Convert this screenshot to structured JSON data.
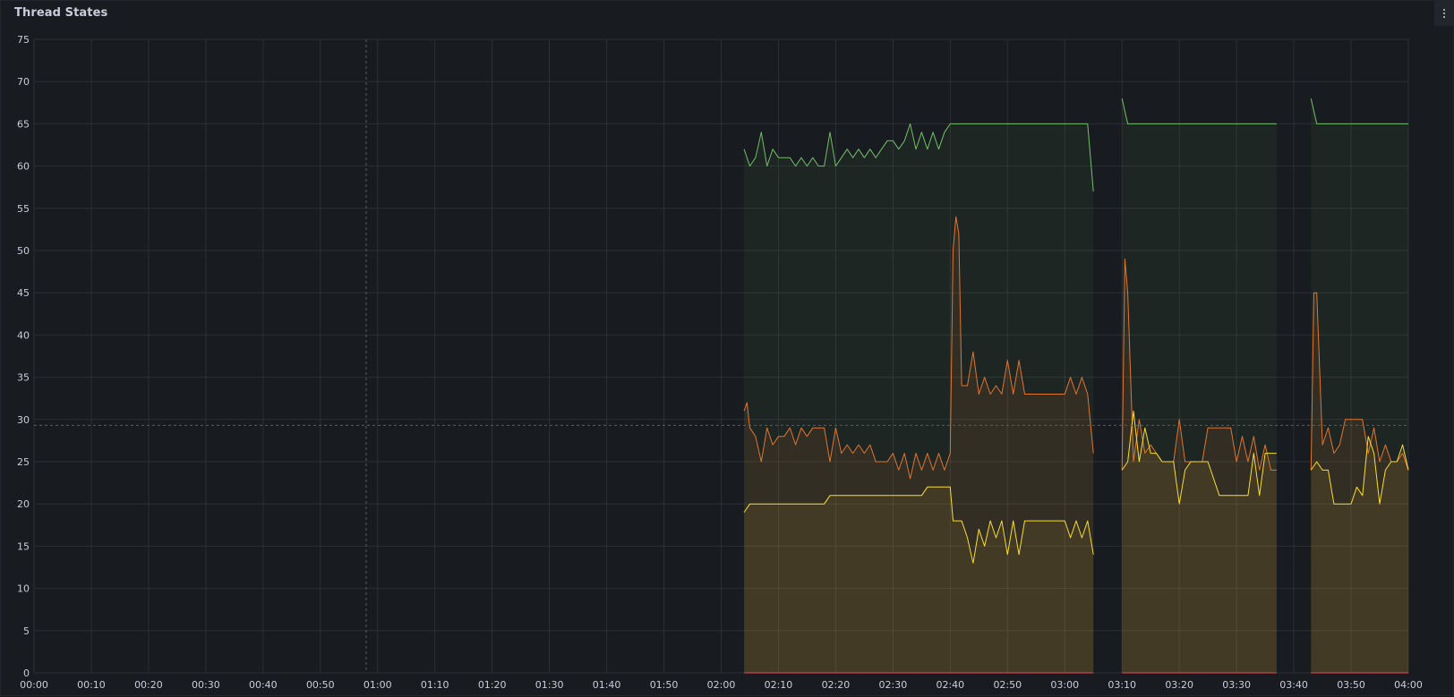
{
  "panel": {
    "title": "Thread States",
    "menu_icon": "kebab-menu-icon"
  },
  "colors": {
    "background": "#181b1f",
    "grid": "#2c2f35",
    "text": "#ccccdc",
    "crosshair": "#5a5e66"
  },
  "chart_data": {
    "type": "area",
    "title": "Thread States",
    "xlabel": "",
    "ylabel": "",
    "grid": true,
    "legend": "none",
    "xlim": [
      "00:00",
      "04:00"
    ],
    "ylim": [
      0,
      75
    ],
    "y_ticks": [
      0,
      5,
      10,
      15,
      20,
      25,
      30,
      35,
      40,
      45,
      50,
      55,
      60,
      65,
      70,
      75
    ],
    "x_ticks": [
      "00:00",
      "00:10",
      "00:20",
      "00:30",
      "00:40",
      "00:50",
      "01:00",
      "01:10",
      "01:20",
      "01:30",
      "01:40",
      "01:50",
      "02:00",
      "02:10",
      "02:20",
      "02:30",
      "02:40",
      "02:50",
      "03:00",
      "03:10",
      "03:20",
      "03:30",
      "03:40",
      "03:50",
      "04:00"
    ],
    "crosshair": {
      "x": "00:58",
      "y": 29.3
    },
    "series": [
      {
        "color": "#73bf69",
        "fill": "#73bf69",
        "segments": [
          [
            [
              "02:04",
              62
            ],
            [
              "02:05",
              60
            ],
            [
              "02:06",
              61
            ],
            [
              "02:07",
              64
            ],
            [
              "02:08",
              60
            ],
            [
              "02:09",
              62
            ],
            [
              "02:10",
              61
            ],
            [
              "02:12",
              61
            ],
            [
              "02:13",
              60
            ],
            [
              "02:14",
              61
            ],
            [
              "02:15",
              60
            ],
            [
              "02:16",
              61
            ],
            [
              "02:17",
              60
            ],
            [
              "02:18",
              60
            ],
            [
              "02:19",
              64
            ],
            [
              "02:20",
              60
            ],
            [
              "02:21",
              61
            ],
            [
              "02:22",
              62
            ],
            [
              "02:23",
              61
            ],
            [
              "02:24",
              62
            ],
            [
              "02:25",
              61
            ],
            [
              "02:26",
              62
            ],
            [
              "02:27",
              61
            ],
            [
              "02:28",
              62
            ],
            [
              "02:29",
              63
            ],
            [
              "02:30",
              63
            ],
            [
              "02:31",
              62
            ],
            [
              "02:32",
              63
            ],
            [
              "02:33",
              65
            ],
            [
              "02:34",
              62
            ],
            [
              "02:35",
              64
            ],
            [
              "02:36",
              62
            ],
            [
              "02:37",
              64
            ],
            [
              "02:38",
              62
            ],
            [
              "02:39",
              64
            ],
            [
              "02:40",
              65
            ],
            [
              "02:45",
              65
            ],
            [
              "02:50",
              65
            ],
            [
              "02:55",
              65
            ],
            [
              "03:00",
              65
            ],
            [
              "03:04",
              65
            ],
            [
              "03:05",
              57
            ]
          ],
          [
            [
              "03:10",
              68
            ],
            [
              "03:11",
              65
            ],
            [
              "03:15",
              65
            ],
            [
              "03:20",
              65
            ],
            [
              "03:25",
              65
            ],
            [
              "03:30",
              65
            ],
            [
              "03:37",
              65
            ]
          ],
          [
            [
              "03:43",
              68
            ],
            [
              "03:44",
              65
            ],
            [
              "03:50",
              65
            ],
            [
              "03:55",
              65
            ],
            [
              "04:00",
              65
            ]
          ]
        ]
      },
      {
        "color": "#e0752d",
        "fill": "#e0752d",
        "segments": [
          [
            [
              "02:04",
              31
            ],
            [
              "02:04.5",
              32
            ],
            [
              "02:05",
              29
            ],
            [
              "02:06",
              28
            ],
            [
              "02:07",
              25
            ],
            [
              "02:08",
              29
            ],
            [
              "02:09",
              27
            ],
            [
              "02:10",
              28
            ],
            [
              "02:11",
              28
            ],
            [
              "02:12",
              29
            ],
            [
              "02:13",
              27
            ],
            [
              "02:14",
              29
            ],
            [
              "02:15",
              28
            ],
            [
              "02:16",
              29
            ],
            [
              "02:17",
              29
            ],
            [
              "02:18",
              29
            ],
            [
              "02:19",
              25
            ],
            [
              "02:20",
              29
            ],
            [
              "02:21",
              26
            ],
            [
              "02:22",
              27
            ],
            [
              "02:23",
              26
            ],
            [
              "02:24",
              27
            ],
            [
              "02:25",
              26
            ],
            [
              "02:26",
              27
            ],
            [
              "02:27",
              25
            ],
            [
              "02:28",
              25
            ],
            [
              "02:29",
              25
            ],
            [
              "02:30",
              26
            ],
            [
              "02:31",
              24
            ],
            [
              "02:32",
              26
            ],
            [
              "02:33",
              23
            ],
            [
              "02:34",
              26
            ],
            [
              "02:35",
              24
            ],
            [
              "02:36",
              26
            ],
            [
              "02:37",
              24
            ],
            [
              "02:38",
              26
            ],
            [
              "02:39",
              24
            ],
            [
              "02:40",
              26
            ],
            [
              "02:40.5",
              50
            ],
            [
              "02:41",
              54
            ],
            [
              "02:41.5",
              52
            ],
            [
              "02:42",
              34
            ],
            [
              "02:43",
              34
            ],
            [
              "02:44",
              38
            ],
            [
              "02:45",
              33
            ],
            [
              "02:46",
              35
            ],
            [
              "02:47",
              33
            ],
            [
              "02:48",
              34
            ],
            [
              "02:49",
              33
            ],
            [
              "02:50",
              37
            ],
            [
              "02:51",
              33
            ],
            [
              "02:52",
              37
            ],
            [
              "02:53",
              33
            ],
            [
              "02:55",
              33
            ],
            [
              "03:00",
              33
            ],
            [
              "03:01",
              35
            ],
            [
              "03:02",
              33
            ],
            [
              "03:03",
              35
            ],
            [
              "03:04",
              33
            ],
            [
              "03:05",
              26
            ]
          ],
          [
            [
              "03:10",
              24
            ],
            [
              "03:10.5",
              49
            ],
            [
              "03:11",
              45
            ],
            [
              "03:12",
              25
            ],
            [
              "03:13",
              30
            ],
            [
              "03:14",
              26
            ],
            [
              "03:15",
              27
            ],
            [
              "03:16",
              26
            ],
            [
              "03:17",
              25
            ],
            [
              "03:19",
              25
            ],
            [
              "03:20",
              30
            ],
            [
              "03:21",
              25
            ],
            [
              "03:22",
              25
            ],
            [
              "03:24",
              25
            ],
            [
              "03:25",
              29
            ],
            [
              "03:29",
              29
            ],
            [
              "03:30",
              25
            ],
            [
              "03:31",
              28
            ],
            [
              "03:32",
              25
            ],
            [
              "03:33",
              28
            ],
            [
              "03:34",
              24
            ],
            [
              "03:35",
              27
            ],
            [
              "03:36",
              24
            ],
            [
              "03:37",
              24
            ]
          ],
          [
            [
              "03:43",
              24
            ],
            [
              "03:43.5",
              45
            ],
            [
              "03:44",
              45
            ],
            [
              "03:45",
              27
            ],
            [
              "03:46",
              29
            ],
            [
              "03:47",
              26
            ],
            [
              "03:48",
              27
            ],
            [
              "03:49",
              30
            ],
            [
              "03:52",
              30
            ],
            [
              "03:53",
              26
            ],
            [
              "03:54",
              29
            ],
            [
              "03:55",
              25
            ],
            [
              "03:56",
              27
            ],
            [
              "03:57",
              25
            ],
            [
              "03:58",
              25
            ],
            [
              "03:59",
              26
            ],
            [
              "04:00",
              24
            ]
          ]
        ]
      },
      {
        "color": "#fade2a",
        "fill": "#c4a33b",
        "segments": [
          [
            [
              "02:04",
              19
            ],
            [
              "02:05",
              20
            ],
            [
              "02:10",
              20
            ],
            [
              "02:15",
              20
            ],
            [
              "02:18",
              20
            ],
            [
              "02:19",
              21
            ],
            [
              "02:25",
              21
            ],
            [
              "02:30",
              21
            ],
            [
              "02:35",
              21
            ],
            [
              "02:36",
              22
            ],
            [
              "02:40",
              22
            ],
            [
              "02:40.5",
              18
            ],
            [
              "02:42",
              18
            ],
            [
              "02:43",
              16
            ],
            [
              "02:44",
              13
            ],
            [
              "02:45",
              17
            ],
            [
              "02:46",
              15
            ],
            [
              "02:47",
              18
            ],
            [
              "02:48",
              16
            ],
            [
              "02:49",
              18
            ],
            [
              "02:50",
              14
            ],
            [
              "02:51",
              18
            ],
            [
              "02:52",
              14
            ],
            [
              "02:53",
              18
            ],
            [
              "02:55",
              18
            ],
            [
              "03:00",
              18
            ],
            [
              "03:01",
              16
            ],
            [
              "03:02",
              18
            ],
            [
              "03:03",
              16
            ],
            [
              "03:04",
              18
            ],
            [
              "03:05",
              14
            ]
          ],
          [
            [
              "03:10",
              24
            ],
            [
              "03:11",
              25
            ],
            [
              "03:12",
              31
            ],
            [
              "03:13",
              25
            ],
            [
              "03:14",
              29
            ],
            [
              "03:15",
              26
            ],
            [
              "03:16",
              26
            ],
            [
              "03:17",
              25
            ],
            [
              "03:19",
              25
            ],
            [
              "03:20",
              20
            ],
            [
              "03:21",
              24
            ],
            [
              "03:22",
              25
            ],
            [
              "03:25",
              25
            ],
            [
              "03:27",
              21
            ],
            [
              "03:32",
              21
            ],
            [
              "03:33",
              26
            ],
            [
              "03:34",
              21
            ],
            [
              "03:35",
              26
            ],
            [
              "03:36",
              26
            ],
            [
              "03:37",
              26
            ]
          ],
          [
            [
              "03:43",
              24
            ],
            [
              "03:44",
              25
            ],
            [
              "03:45",
              24
            ],
            [
              "03:46",
              24
            ],
            [
              "03:47",
              20
            ],
            [
              "03:48",
              20
            ],
            [
              "03:50",
              20
            ],
            [
              "03:51",
              22
            ],
            [
              "03:52",
              21
            ],
            [
              "03:53",
              28
            ],
            [
              "03:54",
              26
            ],
            [
              "03:55",
              20
            ],
            [
              "03:56",
              24
            ],
            [
              "03:57",
              25
            ],
            [
              "03:58",
              25
            ],
            [
              "03:59",
              27
            ],
            [
              "04:00",
              24
            ]
          ]
        ]
      },
      {
        "color": "#f2495c",
        "fill": "#f2495c",
        "segments": [
          [
            [
              "02:04",
              0
            ],
            [
              "03:05",
              0
            ]
          ],
          [
            [
              "03:10",
              0
            ],
            [
              "03:37",
              0
            ]
          ],
          [
            [
              "03:43",
              0
            ],
            [
              "04:00",
              0
            ]
          ]
        ]
      }
    ]
  }
}
